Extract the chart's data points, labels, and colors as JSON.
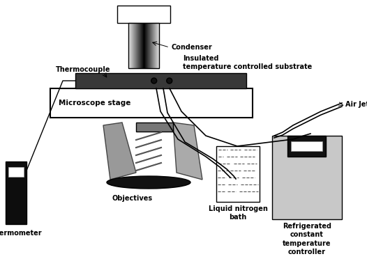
{
  "bg_color": "#ffffff",
  "fig_width": 5.26,
  "fig_height": 3.85,
  "labels": {
    "condenser": "Condenser",
    "thermocouple": "Thermocouple",
    "insulated": "Insulated\ntemperature controlled substrate",
    "microscope": "Microscope stage",
    "objectives": "Objectives",
    "thermometer": "Thermometer",
    "liquid_n2": "Liquid nitrogen\nbath",
    "refrigerated": "Refrigerated\nconstant\ntemperature\ncontroller",
    "air_jet": "Air Jet"
  },
  "font_size": 7.0
}
